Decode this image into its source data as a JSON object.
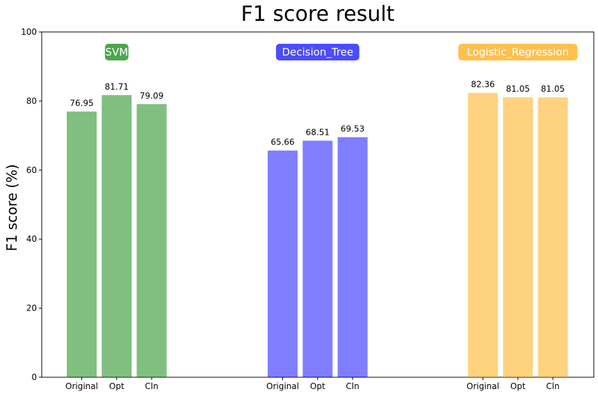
{
  "chart_data": {
    "type": "bar",
    "title": "F1 score result",
    "ylabel": "F1 score (%)",
    "xlabel": "",
    "ylim": [
      0,
      100
    ],
    "yticks": [
      0,
      20,
      40,
      60,
      80,
      100
    ],
    "grid": false,
    "groups": [
      {
        "name": "SVM",
        "color": "#008000",
        "categories": [
          "Original",
          "Opt",
          "Cln"
        ],
        "values": [
          76.95,
          81.71,
          79.09
        ],
        "labels": [
          "76.95",
          "81.71",
          "79.09"
        ]
      },
      {
        "name": "Decision_Tree",
        "color": "#0000ff",
        "categories": [
          "Original",
          "Opt",
          "Cln"
        ],
        "values": [
          65.66,
          68.51,
          69.53
        ],
        "labels": [
          "65.66",
          "68.51",
          "69.53"
        ]
      },
      {
        "name": "Logistic_Regression",
        "color": "#ffa500",
        "categories": [
          "Original",
          "Opt",
          "Cln"
        ],
        "values": [
          82.36,
          81.05,
          81.05
        ],
        "labels": [
          "82.36",
          "81.05",
          "81.05"
        ]
      }
    ]
  }
}
